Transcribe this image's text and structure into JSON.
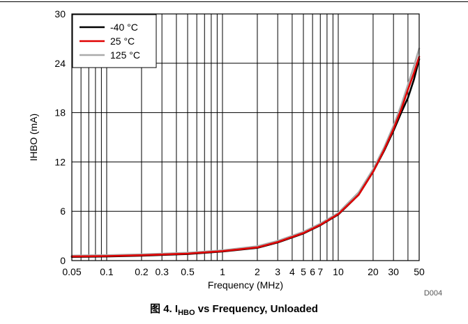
{
  "caption": {
    "prefix": "图 4.",
    "symbol": "I",
    "subscript": "HBO",
    "suffix": "vs Frequency, Unloaded"
  },
  "figure_code": "D004",
  "chart_data": {
    "type": "line",
    "xlabel": "Frequency (MHz)",
    "ylabel": "IHBO (mA)",
    "x_scale": "log",
    "xlim": [
      0.05,
      50
    ],
    "ylim": [
      0,
      30
    ],
    "x_ticks": [
      0.05,
      0.1,
      0.2,
      0.3,
      0.5,
      1,
      2,
      3,
      4,
      5,
      6,
      7,
      10,
      20,
      30,
      50
    ],
    "x_tick_labels": [
      "0.05",
      "0.1",
      "0.2",
      "0.3",
      "0.5",
      "1",
      "2",
      "3",
      "4",
      "5",
      "6",
      "7",
      "10",
      "20",
      "30",
      "50"
    ],
    "y_ticks": [
      0,
      6,
      12,
      18,
      24,
      30
    ],
    "y_tick_labels": [
      "0",
      "6",
      "12",
      "18",
      "24",
      "30"
    ],
    "grid": true,
    "legend_position": "top-left",
    "series": [
      {
        "name": "-40 °C",
        "color": "#000000",
        "x": [
          0.05,
          0.1,
          0.2,
          0.5,
          1,
          2,
          3,
          5,
          7,
          10,
          15,
          20,
          25,
          30,
          35,
          40,
          45,
          50
        ],
        "y": [
          0.45,
          0.5,
          0.6,
          0.8,
          1.1,
          1.55,
          2.2,
          3.3,
          4.3,
          5.6,
          8.0,
          10.8,
          13.4,
          15.8,
          18.0,
          19.8,
          22.0,
          24.5
        ]
      },
      {
        "name": "25 °C",
        "color": "#e00000",
        "x": [
          0.05,
          0.1,
          0.2,
          0.5,
          1,
          2,
          3,
          5,
          7,
          10,
          15,
          20,
          25,
          30,
          35,
          40,
          45,
          50
        ],
        "y": [
          0.5,
          0.55,
          0.65,
          0.85,
          1.15,
          1.6,
          2.25,
          3.35,
          4.35,
          5.65,
          8.0,
          10.8,
          13.5,
          16.0,
          18.4,
          20.8,
          22.8,
          24.8
        ]
      },
      {
        "name": "125 °C",
        "color": "#aaaaaa",
        "x": [
          0.05,
          0.1,
          0.2,
          0.5,
          1,
          2,
          3,
          5,
          7,
          10,
          15,
          20,
          25,
          30,
          35,
          40,
          45,
          50
        ],
        "y": [
          0.6,
          0.65,
          0.75,
          0.95,
          1.25,
          1.75,
          2.4,
          3.5,
          4.5,
          5.8,
          8.3,
          11.1,
          13.8,
          16.4,
          18.9,
          21.4,
          23.6,
          25.8
        ]
      }
    ]
  }
}
